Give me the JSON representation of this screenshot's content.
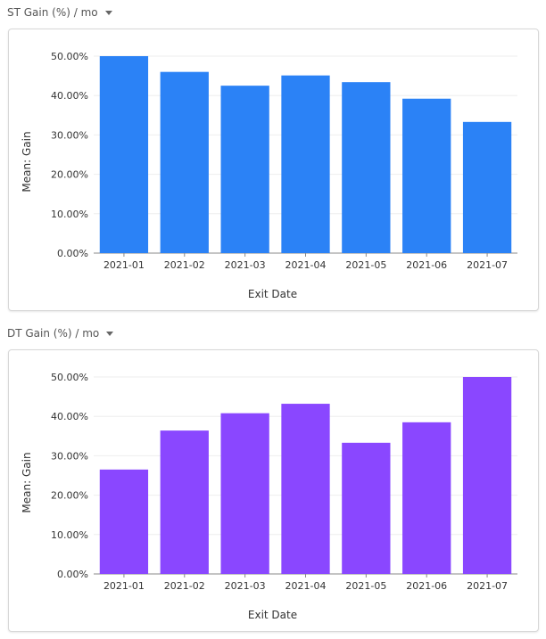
{
  "panels": [
    {
      "title": "ST Gain (%) / mo",
      "chart_data": {
        "type": "bar",
        "categories": [
          "2021-01",
          "2021-02",
          "2021-03",
          "2021-04",
          "2021-05",
          "2021-06",
          "2021-07"
        ],
        "values": [
          50.0,
          46.0,
          42.5,
          45.1,
          43.4,
          39.2,
          33.3
        ],
        "xlabel": "Exit Date",
        "ylabel": "Mean: Gain",
        "ylim": [
          0,
          50
        ],
        "yticks": [
          "0.00%",
          "10.00%",
          "20.00%",
          "30.00%",
          "40.00%",
          "50.00%"
        ],
        "color": "#2b82f6",
        "grid": true
      }
    },
    {
      "title": "DT Gain (%) / mo",
      "chart_data": {
        "type": "bar",
        "categories": [
          "2021-01",
          "2021-02",
          "2021-03",
          "2021-04",
          "2021-05",
          "2021-06",
          "2021-07"
        ],
        "values": [
          26.5,
          36.4,
          40.8,
          43.2,
          33.3,
          38.5,
          50.0
        ],
        "xlabel": "Exit Date",
        "ylabel": "Mean: Gain",
        "ylim": [
          0,
          50
        ],
        "yticks": [
          "0.00%",
          "10.00%",
          "20.00%",
          "30.00%",
          "40.00%",
          "50.00%"
        ],
        "color": "#8a47ff",
        "grid": true
      }
    }
  ]
}
